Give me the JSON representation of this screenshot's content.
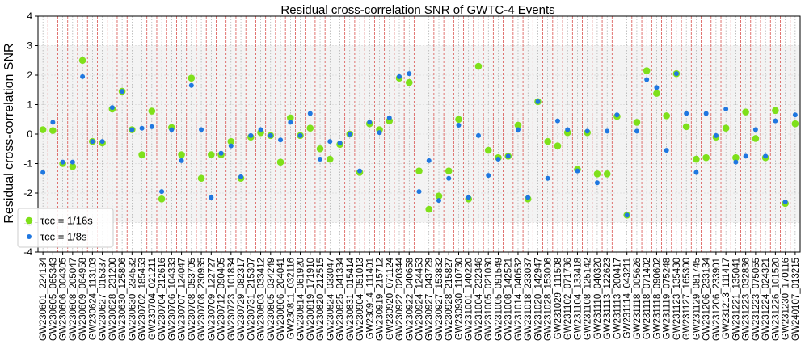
{
  "chart_data": {
    "type": "scatter",
    "title": "Residual cross-correlation SNR of GWTC-4 Events",
    "xlabel": "",
    "ylabel": "Residual cross-correlation SNR",
    "ylim": [
      -4,
      4
    ],
    "yticks": [
      -4,
      -3,
      -2,
      -1,
      0,
      1,
      2,
      3,
      4
    ],
    "shaded_band": [
      -3,
      3
    ],
    "grid": true,
    "legend_position": "lower-left",
    "categories": [
      "GW230601_224134",
      "GW230605_065343",
      "GW230606_004305",
      "GW230608_205047",
      "GW230609_064958",
      "GW230624_113103",
      "GW230627_015337",
      "GW230628_231200",
      "GW230630_125806",
      "GW230630_234532",
      "GW230702_185453",
      "GW230704_021211",
      "GW230704_212616",
      "GW230706_104333",
      "GW230707_124047",
      "GW230708_053705",
      "GW230708_230935",
      "GW230709_122727",
      "GW230712_090405",
      "GW230723_101834",
      "GW230729_082317",
      "GW230731_215307",
      "GW230803_033412",
      "GW230805_034249",
      "GW230806_204041",
      "GW230811_032116",
      "GW230814_061920",
      "GW230819_171910",
      "GW230820_212515",
      "GW230824_033047",
      "GW230825_041334",
      "GW230831_015414",
      "GW230904_051013",
      "GW230914_111401",
      "GW230919_215712",
      "GW230920_071124",
      "GW230922_020344",
      "GW230922_040658",
      "GW230924_124453",
      "GW230927_043729",
      "GW230927_153832",
      "GW230928_215827",
      "GW230930_110730",
      "GW231001_140220",
      "GW231004_232346",
      "GW231005_021030",
      "GW231005_091549",
      "GW231008_142521",
      "GW231014_040532",
      "GW231018_233037",
      "GW231020_142947",
      "GW231028_153006",
      "GW231029_111508",
      "GW231102_071736",
      "GW231104_133418",
      "GW231108_125142",
      "GW231110_040320",
      "GW231113_122623",
      "GW231113_200417",
      "GW231114_043211",
      "GW231118_005626",
      "GW231118_071402",
      "GW231118_090602",
      "GW231119_075248",
      "GW231123_135430",
      "GW231127_165300",
      "GW231129_081745",
      "GW231206_233134",
      "GW231206_233901",
      "GW231213_111417",
      "GW231221_135041",
      "GW231223_032836",
      "GW231223_075055",
      "GW231224_024321",
      "GW231226_101520",
      "GW231230_170116",
      "GW240107_013215"
    ],
    "series": [
      {
        "name": "τcc = 1/16s",
        "color": "#7fe01a",
        "values": [
          0.15,
          0.12,
          -1.0,
          -1.1,
          2.5,
          -0.25,
          -0.3,
          0.85,
          1.45,
          0.15,
          -0.7,
          0.78,
          -2.2,
          0.22,
          -0.7,
          1.9,
          -1.5,
          -0.7,
          -0.7,
          -0.25,
          -1.5,
          -0.1,
          0.05,
          -0.05,
          -0.95,
          0.55,
          -0.05,
          0.2,
          -0.5,
          -0.85,
          -0.35,
          0.0,
          -1.3,
          0.35,
          0.15,
          0.45,
          1.9,
          1.75,
          -1.25,
          -2.55,
          -2.1,
          -1.25,
          0.5,
          -2.2,
          2.3,
          -0.55,
          -0.8,
          -0.75,
          0.3,
          -2.2,
          1.1,
          -0.25,
          -0.4,
          0.05,
          -1.2,
          0.05,
          -1.35,
          -1.35,
          0.6,
          -2.75,
          0.4,
          2.15,
          1.38,
          0.62,
          2.05,
          0.25,
          -0.85,
          -0.8,
          -0.1,
          0.2,
          -0.8,
          0.75,
          -0.15,
          -0.8,
          0.8,
          -2.35,
          0.35
        ]
      },
      {
        "name": "τcc = 1/8s",
        "color": "#1f77e0",
        "values": [
          -1.3,
          0.4,
          -0.95,
          -0.95,
          1.95,
          -0.25,
          -0.25,
          0.9,
          1.45,
          0.15,
          0.2,
          0.25,
          -1.95,
          0.15,
          -0.9,
          1.65,
          0.15,
          -2.15,
          -0.65,
          -0.4,
          -1.45,
          -0.05,
          0.15,
          -0.05,
          -0.2,
          0.4,
          -0.05,
          0.7,
          -0.85,
          -0.25,
          -0.3,
          0.0,
          -1.25,
          0.4,
          0.05,
          0.55,
          1.95,
          2.05,
          -1.95,
          -0.9,
          -2.25,
          -1.5,
          0.3,
          -2.15,
          -0.05,
          -1.4,
          -0.85,
          -0.75,
          0.15,
          -2.15,
          1.1,
          -1.5,
          0.45,
          0.15,
          -1.25,
          0.1,
          -1.65,
          0.1,
          0.65,
          -2.75,
          0.1,
          1.85,
          1.58,
          -0.55,
          2.05,
          0.7,
          -1.3,
          0.7,
          -0.05,
          0.85,
          -0.95,
          -0.75,
          0.15,
          -0.75,
          0.45,
          -2.3,
          0.65
        ]
      }
    ]
  }
}
